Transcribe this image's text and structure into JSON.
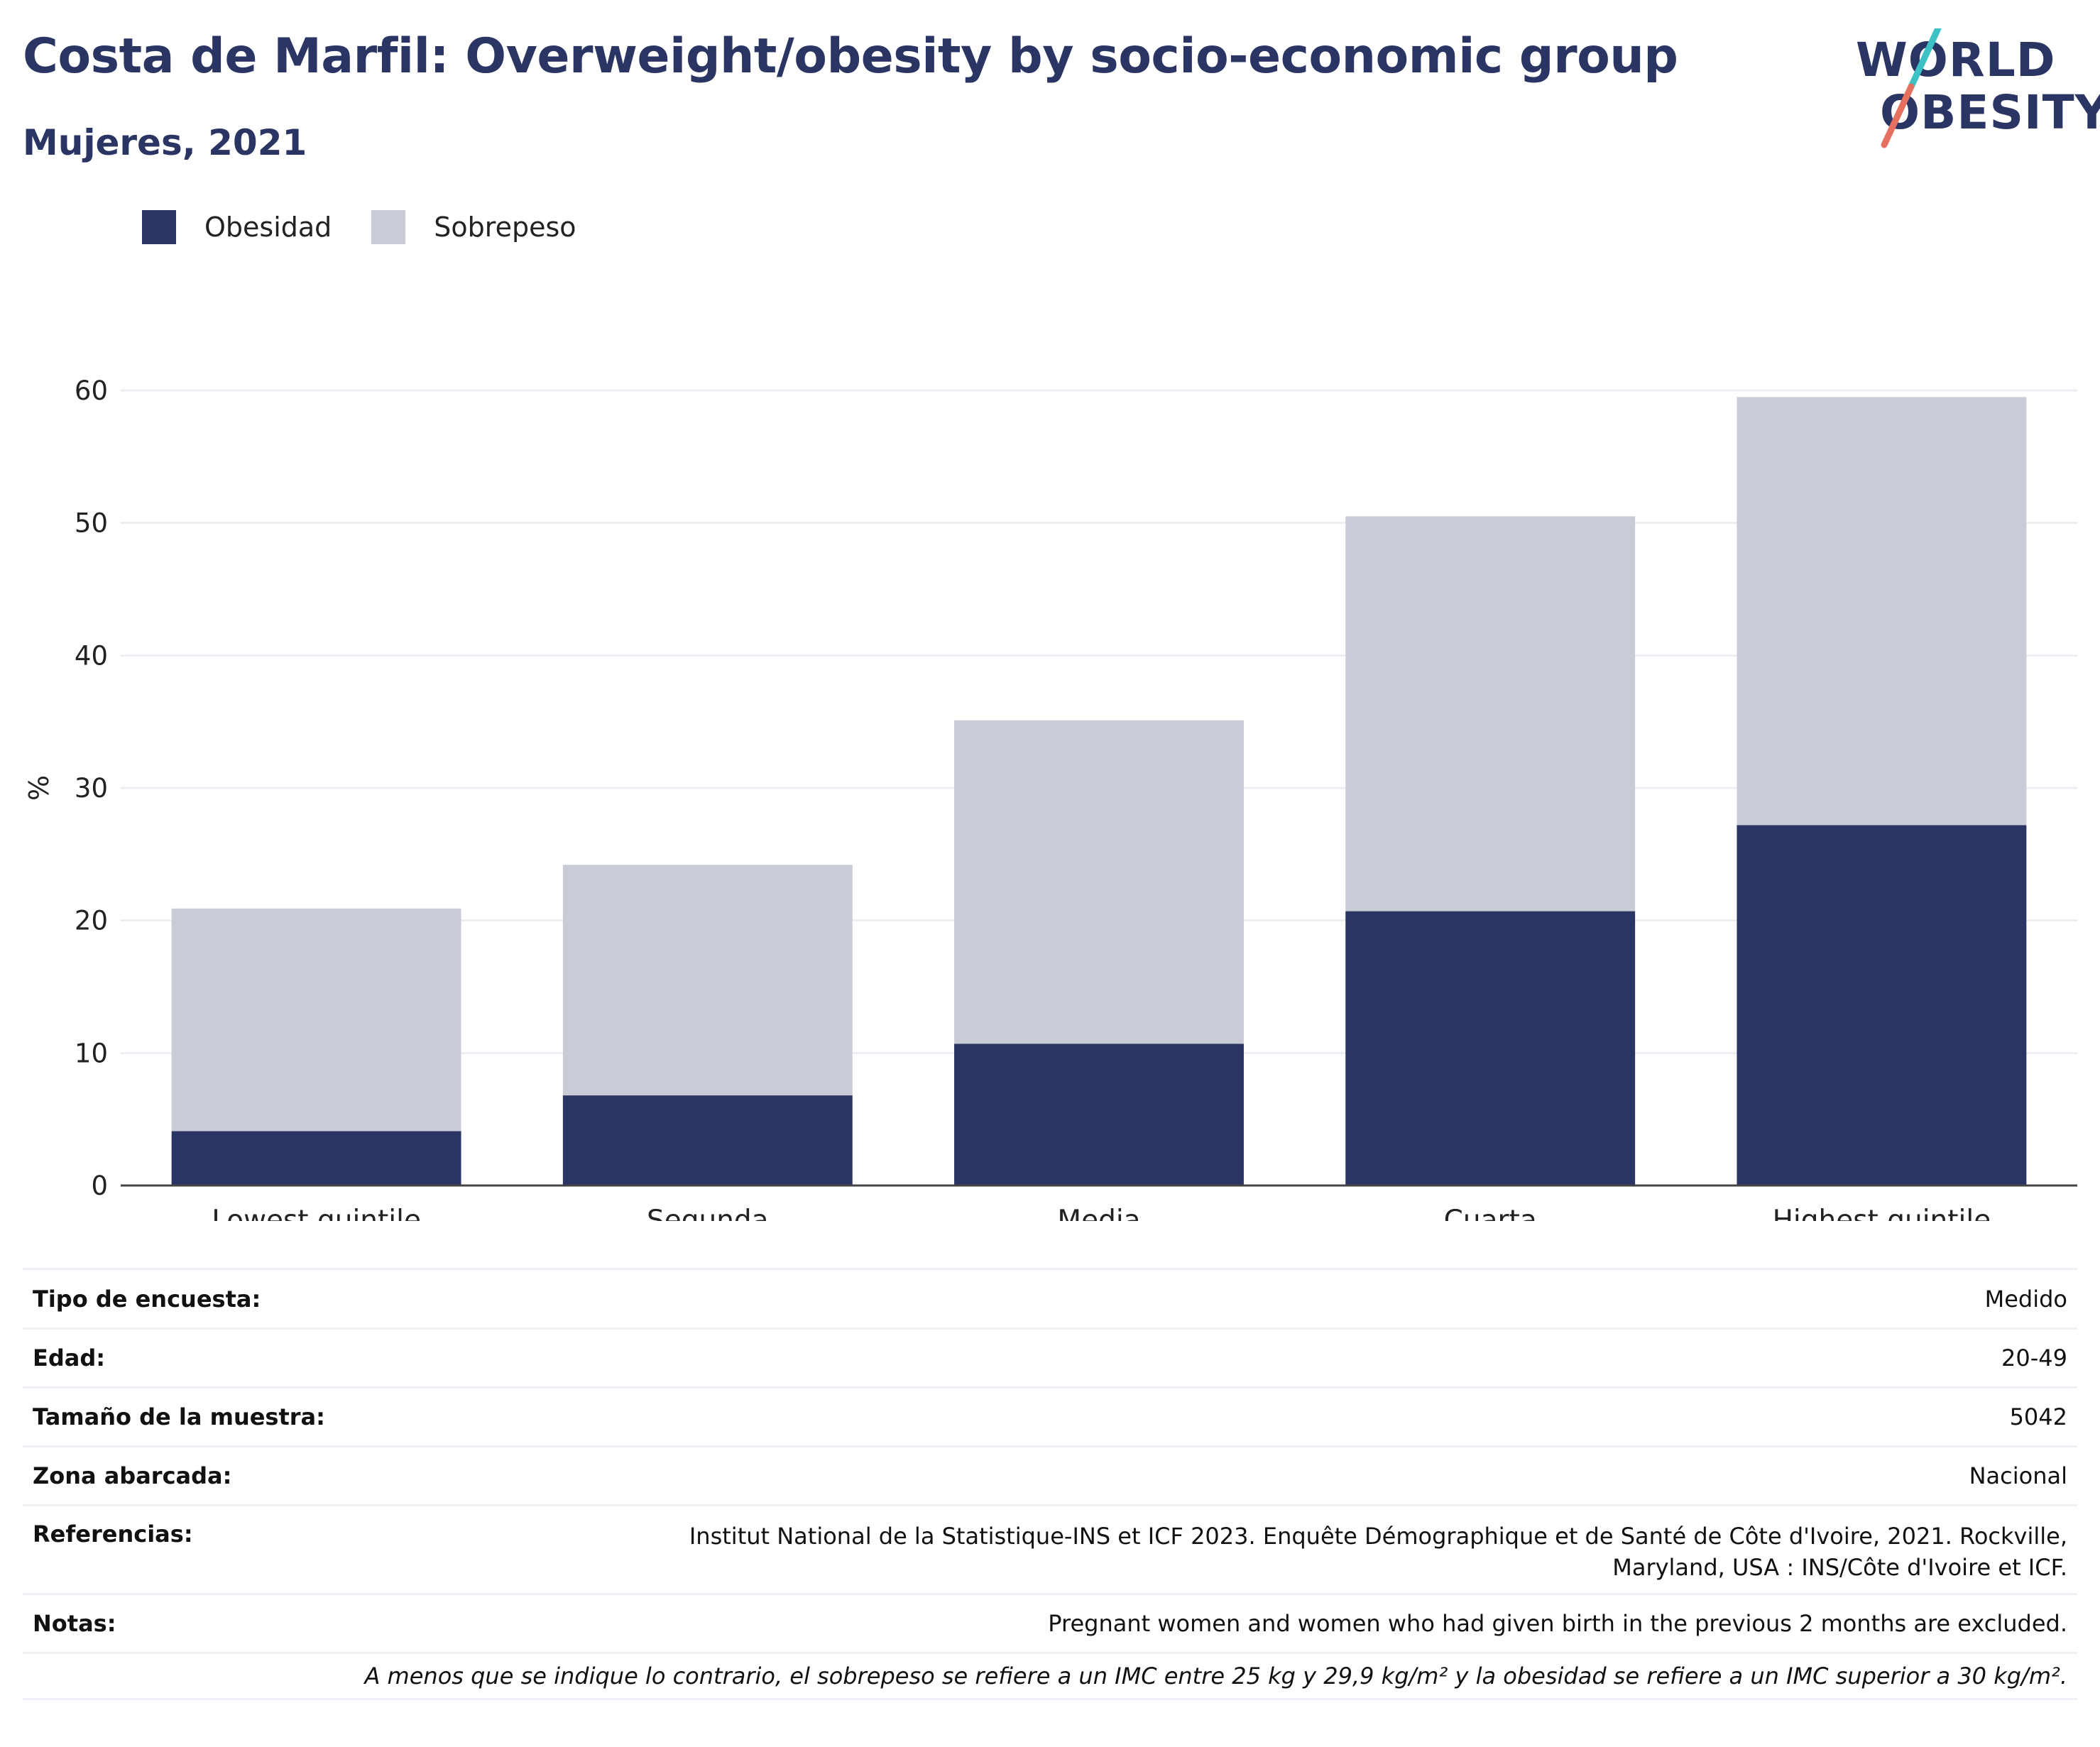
{
  "header": {
    "title": "Costa de Marfil: Overweight/obesity by socio-economic group",
    "subtitle": "Mujeres, 2021"
  },
  "logo": {
    "line1": "WORLD",
    "line2": "OBESITY",
    "accent_colors": [
      "#3ec1c4",
      "#e6705f"
    ]
  },
  "legend": {
    "items": [
      {
        "label": "Obesidad",
        "color": "#2a3563"
      },
      {
        "label": "Sobrepeso",
        "color": "#c9cbd7"
      }
    ]
  },
  "chart_data": {
    "type": "bar",
    "stacked": true,
    "categories": [
      "Lowest quintile",
      "Segunda",
      "Media",
      "Cuarta",
      "Highest quintile"
    ],
    "series": [
      {
        "name": "Obesidad",
        "color": "#2a3563",
        "values": [
          4.1,
          6.8,
          10.7,
          20.7,
          27.2
        ]
      },
      {
        "name": "Sobrepeso",
        "color": "#c9cbd7",
        "values": [
          16.8,
          17.4,
          24.4,
          29.8,
          32.3
        ]
      }
    ],
    "ylabel": "%",
    "xlabel": "",
    "ylim": [
      0,
      60
    ],
    "yticks": [
      0,
      10,
      20,
      30,
      40,
      50,
      60
    ],
    "grid": true,
    "legend_position": "top-left"
  },
  "meta": {
    "rows": [
      {
        "key": "Tipo de encuesta:",
        "value": "Medido"
      },
      {
        "key": "Edad:",
        "value": "20-49"
      },
      {
        "key": "Tamaño de la muestra:",
        "value": "5042"
      },
      {
        "key": "Zona abarcada:",
        "value": "Nacional"
      },
      {
        "key": "Referencias:",
        "value": "Institut National de la Statistique-INS et ICF 2023. Enquête Démographique et de Santé de Côte d'Ivoire, 2021. Rockville, Maryland, USA : INS/Côte d'Ivoire et ICF."
      },
      {
        "key": "Notas:",
        "value": "Pregnant women and women who had given birth in the previous 2 months are excluded."
      }
    ],
    "footnote": "A menos que se indique lo contrario, el sobrepeso se refiere a un IMC entre 25 kg y 29,9 kg/m² y la obesidad se refiere a un IMC superior a 30 kg/m²."
  }
}
